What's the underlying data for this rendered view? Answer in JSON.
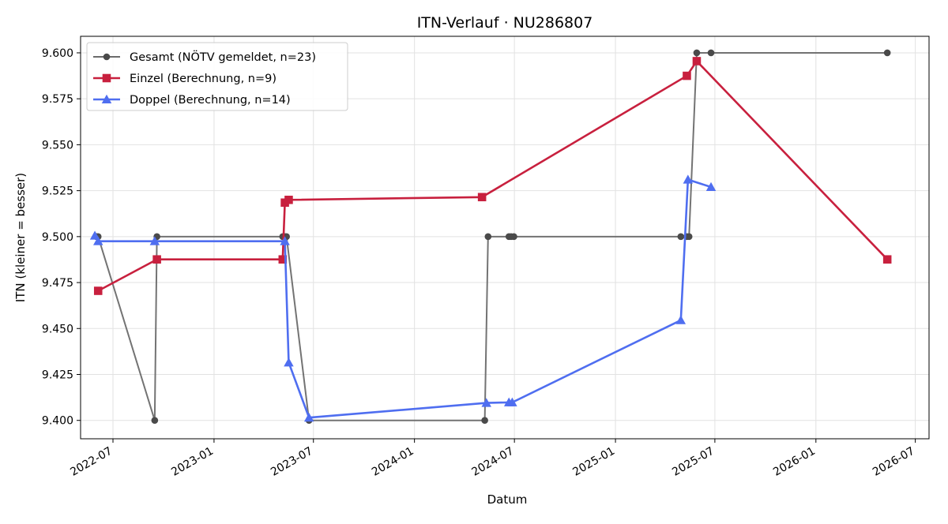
{
  "chart_data": {
    "type": "line",
    "title": "ITN-Verlauf · NU286807",
    "xlabel": "Datum",
    "ylabel": "ITN  (kleiner = besser)",
    "grid": true,
    "legend_position": "top-left",
    "xlim": [
      "2022-05-03",
      "2026-07-26"
    ],
    "ylim": [
      9.39,
      9.609
    ],
    "x_ticks": [
      "2022-07-01",
      "2023-01-01",
      "2023-07-01",
      "2024-01-01",
      "2024-07-01",
      "2025-01-01",
      "2025-07-01",
      "2026-01-01",
      "2026-07-01"
    ],
    "x_tick_labels": [
      "2022-07",
      "2023-01",
      "2023-07",
      "2024-01",
      "2024-07",
      "2025-01",
      "2025-07",
      "2026-01",
      "2026-07"
    ],
    "y_ticks": [
      9.4,
      9.425,
      9.45,
      9.475,
      9.5,
      9.525,
      9.55,
      9.575,
      9.6
    ],
    "y_tick_labels": [
      "9.400",
      "9.425",
      "9.450",
      "9.475",
      "9.500",
      "9.525",
      "9.550",
      "9.575",
      "9.600"
    ],
    "series": [
      {
        "name": "Gesamt (NÖTV gemeldet, n=23)",
        "color": "#6b6b6b",
        "marker": "circle",
        "points": [
          {
            "x": "2022-06-01",
            "y": 9.5
          },
          {
            "x": "2022-06-04",
            "y": 9.5
          },
          {
            "x": "2022-09-15",
            "y": 9.4
          },
          {
            "x": "2022-09-19",
            "y": 9.5
          },
          {
            "x": "2023-05-06",
            "y": 9.5
          },
          {
            "x": "2023-05-10",
            "y": 9.5
          },
          {
            "x": "2023-05-13",
            "y": 9.5
          },
          {
            "x": "2023-06-23",
            "y": 9.4
          },
          {
            "x": "2024-05-08",
            "y": 9.4
          },
          {
            "x": "2024-05-14",
            "y": 9.5
          },
          {
            "x": "2024-06-21",
            "y": 9.5
          },
          {
            "x": "2024-06-25",
            "y": 9.5
          },
          {
            "x": "2024-06-30",
            "y": 9.5
          },
          {
            "x": "2025-04-30",
            "y": 9.5
          },
          {
            "x": "2025-05-11",
            "y": 9.5
          },
          {
            "x": "2025-05-15",
            "y": 9.5
          },
          {
            "x": "2025-05-29",
            "y": 9.6
          },
          {
            "x": "2025-06-24",
            "y": 9.6
          },
          {
            "x": "2026-05-11",
            "y": 9.6
          }
        ]
      },
      {
        "name": "Einzel (Berechnung, n=9)",
        "color": "#c8203e",
        "marker": "square",
        "points": [
          {
            "x": "2022-06-04",
            "y": 9.4705
          },
          {
            "x": "2022-09-19",
            "y": 9.4876
          },
          {
            "x": "2023-05-06",
            "y": 9.4876
          },
          {
            "x": "2023-05-10",
            "y": 9.5185
          },
          {
            "x": "2023-05-17",
            "y": 9.52
          },
          {
            "x": "2024-05-03",
            "y": 9.5215
          },
          {
            "x": "2025-05-11",
            "y": 9.5875
          },
          {
            "x": "2025-05-29",
            "y": 9.5955
          },
          {
            "x": "2026-05-11",
            "y": 9.4876
          }
        ]
      },
      {
        "name": "Doppel (Berechnung, n=14)",
        "color": "#4f6ef0",
        "marker": "triangle",
        "points": [
          {
            "x": "2022-05-29",
            "y": 9.5005
          },
          {
            "x": "2022-06-04",
            "y": 9.4975
          },
          {
            "x": "2022-09-15",
            "y": 9.4975
          },
          {
            "x": "2023-05-10",
            "y": 9.4975
          },
          {
            "x": "2023-05-17",
            "y": 9.4315
          },
          {
            "x": "2023-06-23",
            "y": 9.4015
          },
          {
            "x": "2024-05-11",
            "y": 9.4095
          },
          {
            "x": "2024-06-21",
            "y": 9.4098
          },
          {
            "x": "2024-06-27",
            "y": 9.4098
          },
          {
            "x": "2025-04-30",
            "y": 9.4545
          },
          {
            "x": "2025-05-13",
            "y": 9.531
          },
          {
            "x": "2025-06-24",
            "y": 9.527
          }
        ]
      }
    ]
  }
}
